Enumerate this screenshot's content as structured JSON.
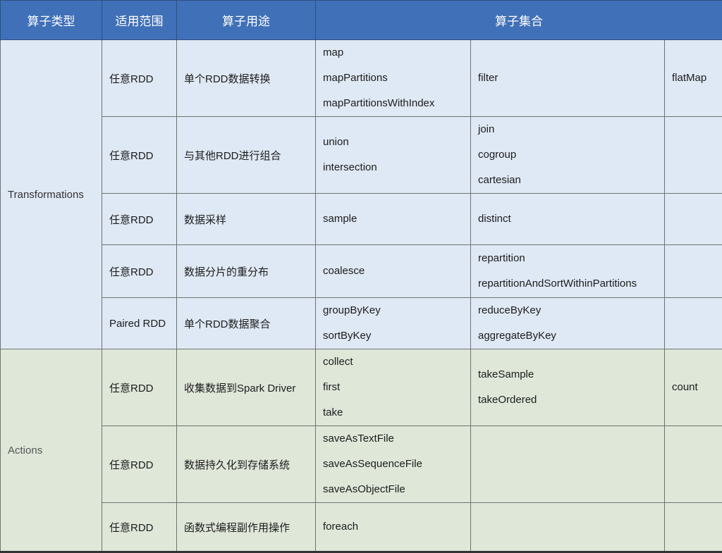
{
  "header": [
    "算子类型",
    "适用范围",
    "算子用途",
    "算子集合"
  ],
  "colors": {
    "header": "#4070b8",
    "transformations": "#dfe9f5",
    "actions": "#dfe7d9"
  },
  "groups": [
    {
      "type": "Transformations",
      "rows": [
        {
          "scope": "任意RDD",
          "purpose": "单个RDD数据转换",
          "ops": [
            [
              "map",
              "mapPartitions",
              "mapPartitionsWithIndex"
            ],
            [
              "filter"
            ],
            [
              "flatMap"
            ]
          ]
        },
        {
          "scope": "任意RDD",
          "purpose": "与其他RDD进行组合",
          "ops": [
            [
              "union",
              "intersection"
            ],
            [
              "join",
              "cogroup",
              "cartesian"
            ],
            []
          ]
        },
        {
          "scope": "任意RDD",
          "purpose": "数据采样",
          "ops": [
            [
              "sample"
            ],
            [
              "distinct"
            ],
            []
          ]
        },
        {
          "scope": "任意RDD",
          "purpose": "数据分片的重分布",
          "ops": [
            [
              "coalesce"
            ],
            [
              "repartition",
              "repartitionAndSortWithinPartitions"
            ],
            []
          ]
        },
        {
          "scope": "Paired RDD",
          "purpose": "单个RDD数据聚合",
          "ops": [
            [
              "groupByKey",
              "sortByKey"
            ],
            [
              "reduceByKey",
              "aggregateByKey"
            ],
            []
          ]
        }
      ]
    },
    {
      "type": "Actions",
      "rows": [
        {
          "scope": "任意RDD",
          "purpose": "收集数据到Spark Driver",
          "ops": [
            [
              "collect",
              "first",
              "take"
            ],
            [
              "takeSample",
              "takeOrdered"
            ],
            [
              "count"
            ]
          ]
        },
        {
          "scope": "任意RDD",
          "purpose": "数据持久化到存储系统",
          "ops": [
            [
              "saveAsTextFile",
              "saveAsSequenceFile",
              "saveAsObjectFile"
            ],
            [],
            []
          ]
        },
        {
          "scope": "任意RDD",
          "purpose": "函数式编程副作用操作",
          "ops": [
            [
              "foreach"
            ],
            [],
            []
          ]
        }
      ]
    }
  ]
}
